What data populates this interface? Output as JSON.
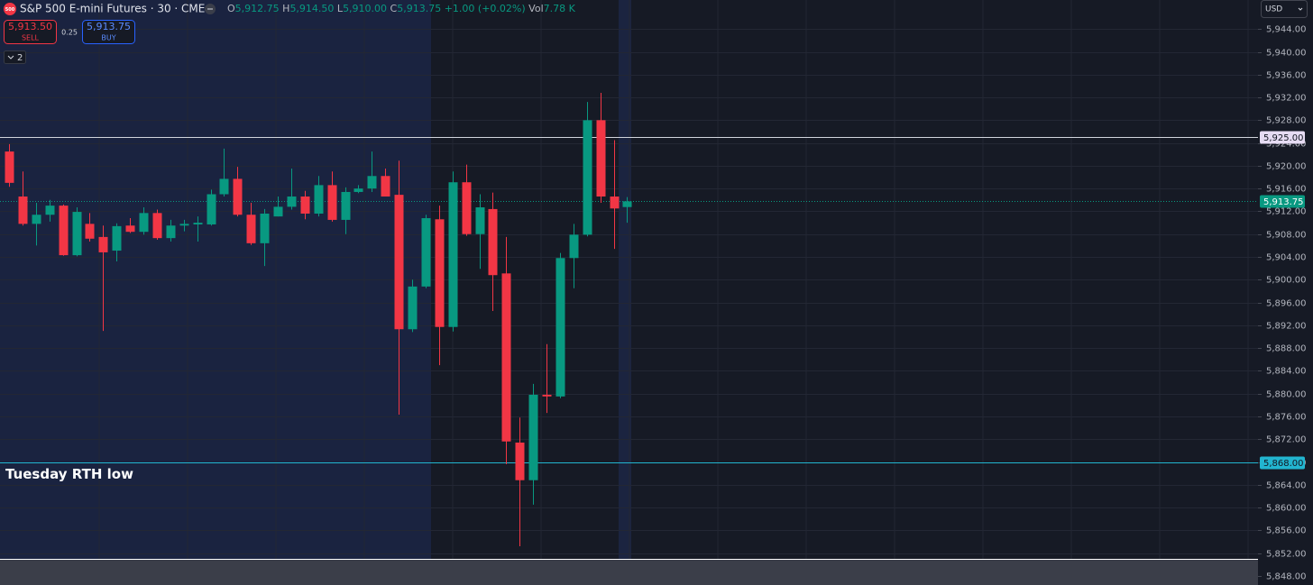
{
  "chart_data": {
    "type": "candlestick",
    "title": "S&P 500 E-mini Futures · 30 · CME",
    "symbol_badge": "500",
    "legend": {
      "o_label": "O",
      "o": "5,912.75",
      "h_label": "H",
      "h": "5,914.50",
      "l_label": "L",
      "l": "5,910.00",
      "c_label": "C",
      "c": "5,913.75",
      "change": "+1.00 (+0.02%)",
      "vol_label": "Vol",
      "vol": "7.78 K"
    },
    "trade": {
      "sell_price": "5,913.50",
      "sell": "SELL",
      "spread": "0.25",
      "buy_price": "5,913.75",
      "buy": "BUY"
    },
    "indicators_toggle": "2",
    "currency": "USD",
    "up_color": "#089981",
    "down_color": "#f23645",
    "open": [
      5922.5,
      5914.6,
      5909.8,
      5911.4,
      5913,
      5904.3,
      5909.8,
      5907.5,
      5905.1,
      5909.5,
      5908.4,
      5911.7,
      5907.3,
      5909.5,
      5909.7,
      5909.7,
      5915,
      5917.7,
      5911.4,
      5906.4,
      5911.1,
      5912.8,
      5914.6,
      5911.6,
      5916.6,
      5910.5,
      5915.4,
      5916,
      5918.2,
      5914.9,
      5891.3,
      5898.8,
      5910.6,
      5891.7,
      5917.1,
      5908,
      5912.4,
      5901.1,
      5871.4,
      5864.8,
      5879.8,
      5879.5,
      5903.8,
      5907.9,
      5928,
      5914.6,
      5912.75
    ],
    "high": [
      5923.8,
      5919,
      5913.5,
      5914,
      5913.2,
      5912.7,
      5911.7,
      5909.5,
      5909.9,
      5910.8,
      5912.7,
      5912.3,
      5910.5,
      5910.5,
      5911.1,
      5915.8,
      5923,
      5919.8,
      5913.5,
      5912.4,
      5914.6,
      5919.5,
      5915.6,
      5918.2,
      5919,
      5916.2,
      5916.6,
      5922.5,
      5919.5,
      5920.9,
      5900,
      5911.4,
      5913,
      5919,
      5920.2,
      5915,
      5915.3,
      5907.5,
      5875.8,
      5881.7,
      5888.7,
      5904.7,
      5909.8,
      5931.2,
      5932.8,
      5924.5,
      5914.5
    ],
    "low": [
      5916.3,
      5909.5,
      5906,
      5910.2,
      5904.2,
      5904.1,
      5906.7,
      5891,
      5903.2,
      5908.2,
      5907.9,
      5907,
      5906.7,
      5908.5,
      5906.7,
      5909.5,
      5914.6,
      5911.1,
      5906.1,
      5902.4,
      5911.1,
      5912.3,
      5910.6,
      5911.1,
      5910.2,
      5908,
      5915.2,
      5915.4,
      5914.6,
      5876.3,
      5890.8,
      5898.5,
      5885,
      5890.9,
      5907.7,
      5901.9,
      5894.5,
      5867.6,
      5853.2,
      5860.5,
      5876.6,
      5879.2,
      5898.5,
      5907.6,
      5913.5,
      5905.4,
      5910
    ],
    "close": [
      5917,
      5909.8,
      5911.4,
      5913,
      5904.3,
      5911.9,
      5907.2,
      5904.8,
      5909.4,
      5908.4,
      5911.7,
      5907.3,
      5909.5,
      5909.8,
      5910,
      5915,
      5917.7,
      5911.4,
      5906.4,
      5911.6,
      5912.8,
      5914.6,
      5911.6,
      5916.6,
      5910.5,
      5915.4,
      5916,
      5918.2,
      5914.6,
      5891.3,
      5898.8,
      5910.8,
      5891.7,
      5917.1,
      5908,
      5912.7,
      5900.8,
      5871.6,
      5864.8,
      5879.8,
      5879.5,
      5903.8,
      5907.9,
      5928,
      5914.6,
      5912.5,
      5913.75
    ],
    "ylim": [
      5846.4,
      5949.1
    ],
    "yticks": [
      {
        "value": 5848,
        "label": "5,848.00"
      },
      {
        "value": 5852,
        "label": "5,852.00"
      },
      {
        "value": 5856,
        "label": "5,856.00"
      },
      {
        "value": 5860,
        "label": "5,860.00"
      },
      {
        "value": 5864,
        "label": "5,864.00"
      },
      {
        "value": 5868,
        "label": "5,868.00"
      },
      {
        "value": 5872,
        "label": "5,872.00"
      },
      {
        "value": 5876,
        "label": "5,876.00"
      },
      {
        "value": 5880,
        "label": "5,880.00"
      },
      {
        "value": 5884,
        "label": "5,884.00"
      },
      {
        "value": 5888,
        "label": "5,888.00"
      },
      {
        "value": 5892,
        "label": "5,892.00"
      },
      {
        "value": 5896,
        "label": "5,896.00"
      },
      {
        "value": 5900,
        "label": "5,900.00"
      },
      {
        "value": 5904,
        "label": "5,904.00"
      },
      {
        "value": 5908,
        "label": "5,908.00"
      },
      {
        "value": 5912,
        "label": "5,912.00"
      },
      {
        "value": 5916,
        "label": "5,916.00"
      },
      {
        "value": 5920,
        "label": "5,920.00"
      },
      {
        "value": 5924,
        "label": "5,924.00"
      },
      {
        "value": 5928,
        "label": "5,928.00"
      },
      {
        "value": 5932,
        "label": "5,932.00"
      },
      {
        "value": 5936,
        "label": "5,936.00"
      },
      {
        "value": 5940,
        "label": "5,940.00"
      },
      {
        "value": 5944,
        "label": "5,944.00"
      }
    ],
    "grid": true,
    "levels": [
      {
        "value": 5925,
        "label": "5,925.00",
        "color": "#d1d4dc",
        "label_bg": "#e6dcf3",
        "label_color": "#131722"
      },
      {
        "value": 5868,
        "label": "5,868.00",
        "color": "#22b5d0",
        "label_bg": "#22b5d0",
        "label_color": "#131722",
        "annotation": "Tuesday RTH low"
      }
    ],
    "last_price": {
      "value": 5913.75,
      "label": "5,913.75"
    }
  }
}
